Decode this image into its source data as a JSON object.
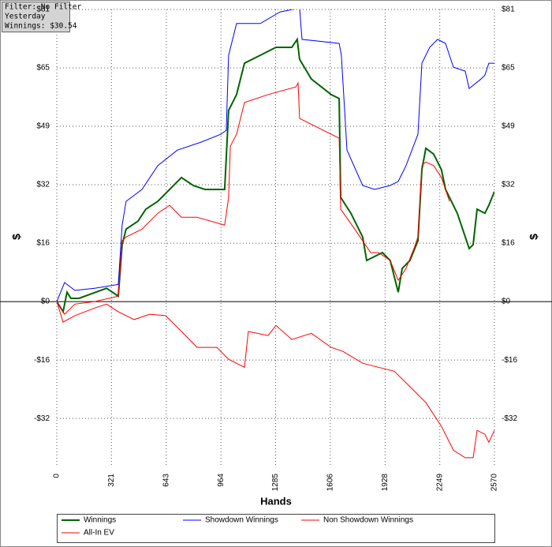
{
  "chart_data": {
    "type": "line",
    "info": [
      "Filter: No Filter",
      "Yesterday",
      "Winnings: $30.54"
    ],
    "x_label": "Hands",
    "y_label": "$",
    "y2_label": "$",
    "xlim": [
      0,
      2570
    ],
    "xticks": [
      0,
      321,
      643,
      964,
      1285,
      1606,
      1928,
      2249,
      2570
    ],
    "ylim": [
      -45.5,
      81
    ],
    "yticks": [
      {
        "value": -32.4,
        "label": "-$32"
      },
      {
        "value": -16.2,
        "label": "-$16"
      },
      {
        "value": 0,
        "label": "$0"
      },
      {
        "value": 16.2,
        "label": "$16"
      },
      {
        "value": 32.4,
        "label": "$32"
      },
      {
        "value": 48.6,
        "label": "$49"
      },
      {
        "value": 64.8,
        "label": "$65"
      },
      {
        "value": 81,
        "label": "$81"
      }
    ],
    "grid": true,
    "series": [
      {
        "name": "Winnings",
        "color": "#006400",
        "width": 2,
        "x": [
          0,
          37,
          60,
          83,
          130,
          292,
          361,
          384,
          407,
          477,
          523,
          593,
          732,
          801,
          870,
          986,
          1009,
          1056,
          1102,
          1195,
          1287,
          1380,
          1412,
          1426,
          1495,
          1611,
          1658,
          1667,
          1727,
          1796,
          1820,
          1866,
          1912,
          1958,
          2005,
          2028,
          2074,
          2121,
          2144,
          2167,
          2213,
          2259,
          2283,
          2352,
          2422,
          2445,
          2468,
          2514,
          2537,
          2570
        ],
        "values": [
          0,
          -2.8,
          2.6,
          0.9,
          0.9,
          3.7,
          1.5,
          15.8,
          20.1,
          22.3,
          25.6,
          27.8,
          34.4,
          32.2,
          31.1,
          31.1,
          53.0,
          57.4,
          66.1,
          68.3,
          70.5,
          70.5,
          72.7,
          67.2,
          61.7,
          57.4,
          56.3,
          28.9,
          24.5,
          17.9,
          11.4,
          12.5,
          13.6,
          11.4,
          2.6,
          9.2,
          11.4,
          16.9,
          36.6,
          42.5,
          40.9,
          36.6,
          31.1,
          24.5,
          14.7,
          15.8,
          25.6,
          24.5,
          26.7,
          30.54
        ]
      },
      {
        "name": "Showdown Winnings",
        "color": "#0000ff",
        "width": 1,
        "x": [
          0,
          46,
          106,
          222,
          315,
          361,
          384,
          407,
          500,
          593,
          708,
          847,
          963,
          995,
          1009,
          1056,
          1195,
          1310,
          1426,
          1440,
          1658,
          1671,
          1704,
          1796,
          1866,
          1958,
          2005,
          2051,
          2121,
          2144,
          2190,
          2236,
          2283,
          2329,
          2398,
          2422,
          2491,
          2514,
          2537,
          2570
        ],
        "values": [
          0,
          5.3,
          3.1,
          3.7,
          4.4,
          4.8,
          21.2,
          27.8,
          31.1,
          37.7,
          42.0,
          44.2,
          46.4,
          47.5,
          68.3,
          77.1,
          77.1,
          80.3,
          81.4,
          72.7,
          71.6,
          68.3,
          42.0,
          32.2,
          31.1,
          32.2,
          33.3,
          37.7,
          46.4,
          66.1,
          70.5,
          72.7,
          71.6,
          65.0,
          63.9,
          59.1,
          61.7,
          62.8,
          66.1,
          66.1
        ]
      },
      {
        "name": "Non Showdown Winnings",
        "color": "#ff0000",
        "width": 1,
        "x": [
          0,
          37,
          106,
          222,
          292,
          361,
          454,
          546,
          639,
          732,
          824,
          940,
          1009,
          1102,
          1125,
          1241,
          1287,
          1380,
          1495,
          1611,
          1681,
          1796,
          1889,
          1982,
          2074,
          2167,
          2259,
          2329,
          2398,
          2445,
          2468,
          2514,
          2537,
          2570
        ],
        "values": [
          0,
          -5.7,
          -3.9,
          -1.8,
          -0.7,
          -2.8,
          -5.0,
          -3.5,
          -3.9,
          -8.3,
          -12.7,
          -12.7,
          -16.0,
          -18.2,
          -8.3,
          -9.4,
          -6.6,
          -10.5,
          -8.8,
          -12.7,
          -13.8,
          -17.1,
          -18.2,
          -19.3,
          -23.6,
          -28.0,
          -34.6,
          -41.2,
          -43.3,
          -43.3,
          -35.7,
          -36.8,
          -39.0,
          -35.7
        ]
      },
      {
        "name": "All-In EV",
        "color": "#ff0000",
        "width": 1,
        "x": [
          0,
          46,
          106,
          222,
          361,
          384,
          407,
          500,
          593,
          662,
          732,
          824,
          986,
          1009,
          1019,
          1056,
          1102,
          1241,
          1403,
          1417,
          1426,
          1611,
          1658,
          1667,
          1750,
          1843,
          1889,
          1958,
          2005,
          2051,
          2097,
          2121,
          2144,
          2167,
          2213,
          2259,
          2306
        ],
        "values": [
          0,
          -3.5,
          -0.7,
          0,
          1.5,
          16.9,
          17.9,
          20.1,
          24.5,
          26.7,
          23.4,
          23.4,
          21.2,
          28.9,
          43.1,
          46.4,
          55.2,
          57.4,
          59.5,
          60.6,
          50.8,
          46.4,
          45.3,
          25.6,
          20.1,
          13.6,
          13.6,
          11.4,
          5.9,
          9.2,
          14.7,
          17.9,
          37.7,
          38.7,
          37.7,
          34.4,
          27.8
        ]
      }
    ]
  }
}
